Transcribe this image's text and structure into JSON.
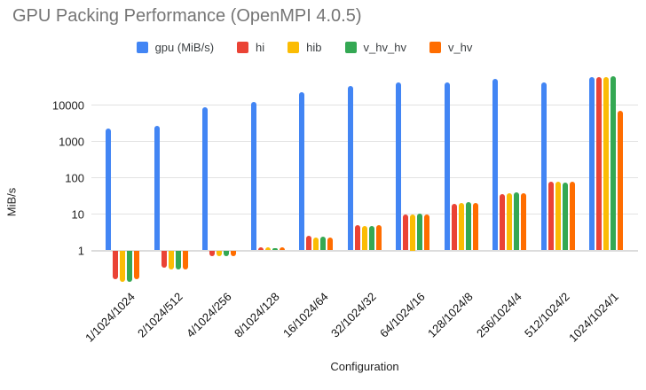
{
  "title": "GPU Packing Performance (OpenMPI 4.0.5)",
  "chart_data": {
    "type": "bar",
    "title": "GPU Packing Performance (OpenMPI 4.0.5)",
    "xlabel": "Configuration",
    "ylabel": "MiB/s",
    "y_scale": "log",
    "y_ticks": [
      1,
      10,
      100,
      1000,
      10000
    ],
    "ylim": [
      0.13,
      65000
    ],
    "grid": true,
    "legend_position": "top",
    "categories": [
      "1/1024/1024",
      "2/1024/512",
      "4/1024/256",
      "8/1024/128",
      "16/1024/64",
      "32/1024/32",
      "64/1024/16",
      "128/1024/8",
      "256/1024/4",
      "512/1024/2",
      "1024/1024/1"
    ],
    "series": [
      {
        "key": "gpu",
        "name": "gpu (MiB/s)",
        "color": "#4285F4",
        "values": [
          2200,
          2600,
          8500,
          12500,
          23000,
          33000,
          41000,
          43000,
          52000,
          43000,
          58000
        ]
      },
      {
        "key": "hi",
        "name": "hi",
        "color": "#EA4335",
        "values": [
          0.16,
          0.33,
          0.7,
          1.25,
          2.5,
          5,
          9.5,
          19.5,
          36,
          76,
          60000
        ]
      },
      {
        "key": "hib",
        "name": "hib",
        "color": "#FBBC04",
        "values": [
          0.14,
          0.3,
          0.68,
          1.25,
          2.2,
          4.8,
          10,
          20,
          38,
          79,
          59000
        ]
      },
      {
        "key": "v_hv_hv",
        "name": "v_hv_hv",
        "color": "#34A853",
        "values": [
          0.14,
          0.3,
          0.68,
          1.15,
          2.4,
          4.8,
          10.2,
          21,
          40,
          72,
          63000
        ]
      },
      {
        "key": "v_hv",
        "name": "v_hv",
        "color": "#FF6D00",
        "values": [
          0.16,
          0.3,
          0.68,
          1.2,
          2.3,
          5,
          9.8,
          20,
          38,
          79,
          6800
        ]
      }
    ]
  }
}
